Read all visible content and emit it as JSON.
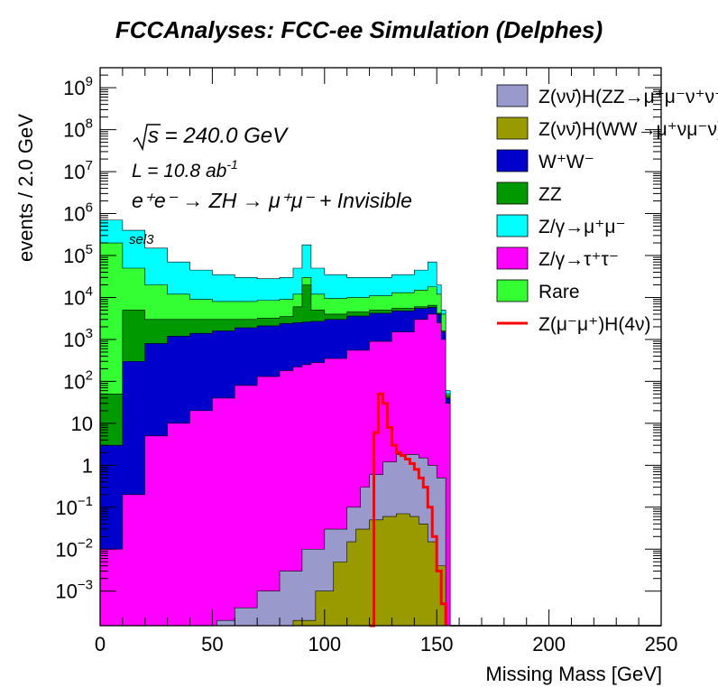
{
  "chart_data": {
    "type": "area",
    "title": "FCCAnalyses: FCC-ee Simulation (Delphes)",
    "xlabel": "Missing Mass [GeV]",
    "ylabel": "events / 2.0 GeV",
    "xlim": [
      0,
      250
    ],
    "ylim": [
      0.00015,
      3000000000.0
    ],
    "yscale": "log",
    "grid": false,
    "legend_position": "top-right",
    "x_ticks": [
      "0",
      "50",
      "100",
      "150",
      "200",
      "250"
    ],
    "y_ticks": [
      {
        "base": "10",
        "exp": "9",
        "value": 1000000000.0
      },
      {
        "base": "10",
        "exp": "8",
        "value": 100000000.0
      },
      {
        "base": "10",
        "exp": "7",
        "value": 10000000.0
      },
      {
        "base": "10",
        "exp": "6",
        "value": 1000000.0
      },
      {
        "base": "10",
        "exp": "5",
        "value": 100000.0
      },
      {
        "base": "10",
        "exp": "4",
        "value": 10000.0
      },
      {
        "base": "10",
        "exp": "3",
        "value": 1000.0
      },
      {
        "base": "10",
        "exp": "2",
        "value": 100.0
      },
      {
        "base": "10",
        "exp": "",
        "value": 10
      },
      {
        "base": "1",
        "exp": "",
        "value": 1
      },
      {
        "base": "10",
        "exp": "−1",
        "value": 0.1
      },
      {
        "base": "10",
        "exp": "−2",
        "value": 0.01
      },
      {
        "base": "10",
        "exp": "−3",
        "value": 0.001
      }
    ],
    "annotations": {
      "sqrt_s": "s = 240.0 GeV",
      "lumi": "L = 10.8 ab",
      "lumi_exp": "-1",
      "process": "e⁺e⁻ → ZH → μ⁺μ⁻ + Invisible",
      "selection": "sel3"
    },
    "x": [
      0,
      10,
      20,
      30,
      40,
      50,
      60,
      70,
      80,
      86,
      90,
      94,
      100,
      110,
      120,
      130,
      140,
      146,
      150,
      152,
      154,
      156
    ],
    "stack_totals": [
      {
        "name": "Z/γ→τ⁺τ⁻",
        "values": [
          0.01,
          0.2,
          5,
          10,
          20,
          40,
          80,
          130,
          180,
          220,
          250,
          280,
          350,
          550,
          900,
          1500,
          3000,
          4000,
          2500,
          1000,
          30,
          0.0001
        ]
      },
      {
        "name": "W⁺W⁻",
        "values": [
          3,
          300,
          800,
          1200,
          1400,
          1600,
          1900,
          2100,
          2400,
          2500,
          2600,
          2700,
          3000,
          3600,
          4200,
          4800,
          5500,
          5800,
          4000,
          1500,
          40,
          0.0001
        ]
      },
      {
        "name": "ZZ",
        "values": [
          50,
          5000,
          3000,
          3000,
          3000,
          3000,
          3000,
          3200,
          3500,
          6000,
          20000,
          5000,
          4000,
          4500,
          5000,
          5500,
          6000,
          6500,
          4200,
          1600,
          45,
          0.0001
        ]
      },
      {
        "name": "Rare",
        "values": [
          200000,
          50000,
          20000,
          12000,
          9000,
          8000,
          8000,
          8500,
          9000,
          12000,
          30000,
          12000,
          9500,
          10000,
          11000,
          13000,
          15000,
          18000,
          12000,
          4000,
          50,
          0.0001
        ]
      },
      {
        "name": "Z/γ→μ⁺μ⁻",
        "values": [
          700000,
          400000,
          150000,
          70000,
          45000,
          35000,
          30000,
          28000,
          30000,
          50000,
          180000,
          50000,
          35000,
          30000,
          30000,
          35000,
          45000,
          70000,
          20000,
          5000,
          60,
          0.0001
        ]
      }
    ],
    "series": [
      {
        "name": "Z(νν̄)H(ZZ→μ⁺μ⁻ν⁺ν⁻)",
        "color": "#9999cc"
      },
      {
        "name": "Z(νν̄)H(WW→μ⁺νμ⁻ν)",
        "color": "#999900"
      },
      {
        "name": "W⁺W⁻",
        "color": "#0000cc"
      },
      {
        "name": "ZZ",
        "color": "#009900"
      },
      {
        "name": "Z/γ→μ⁺μ⁻",
        "color": "#00ffff"
      },
      {
        "name": "Z/γ→τ⁺τ⁻",
        "color": "#ff00ff"
      },
      {
        "name": "Rare",
        "color": "#33ff33"
      },
      {
        "name": "Z(μ⁻μ⁺)H(4ν)",
        "color": "#ff0000"
      }
    ],
    "higgs_zz_curve": {
      "x": [
        52,
        60,
        70,
        80,
        90,
        100,
        110,
        116,
        120,
        126,
        132,
        138,
        142,
        146,
        150,
        154
      ],
      "values": [
        0.0002,
        0.0004,
        0.001,
        0.003,
        0.01,
        0.03,
        0.1,
        0.3,
        0.6,
        1.2,
        1.8,
        1.8,
        1.5,
        1.0,
        0.5,
        0.0001
      ]
    },
    "higgs_ww_curve": {
      "x": [
        86,
        96,
        104,
        110,
        114,
        120,
        126,
        132,
        138,
        142,
        146,
        150,
        154
      ],
      "values": [
        0.0002,
        0.001,
        0.005,
        0.015,
        0.03,
        0.05,
        0.06,
        0.07,
        0.06,
        0.04,
        0.015,
        0.004,
        0.0001
      ]
    },
    "signal_line": {
      "x": [
        120,
        122,
        124,
        126,
        128,
        130,
        132,
        134,
        136,
        138,
        140,
        142,
        144,
        146,
        148,
        150,
        152,
        154
      ],
      "values": [
        0.00015,
        6,
        50,
        30,
        8,
        3,
        2.0,
        1.7,
        1.4,
        1.1,
        0.8,
        0.5,
        0.3,
        0.1,
        0.02,
        0.003,
        0.0005,
        0.00015
      ]
    }
  }
}
